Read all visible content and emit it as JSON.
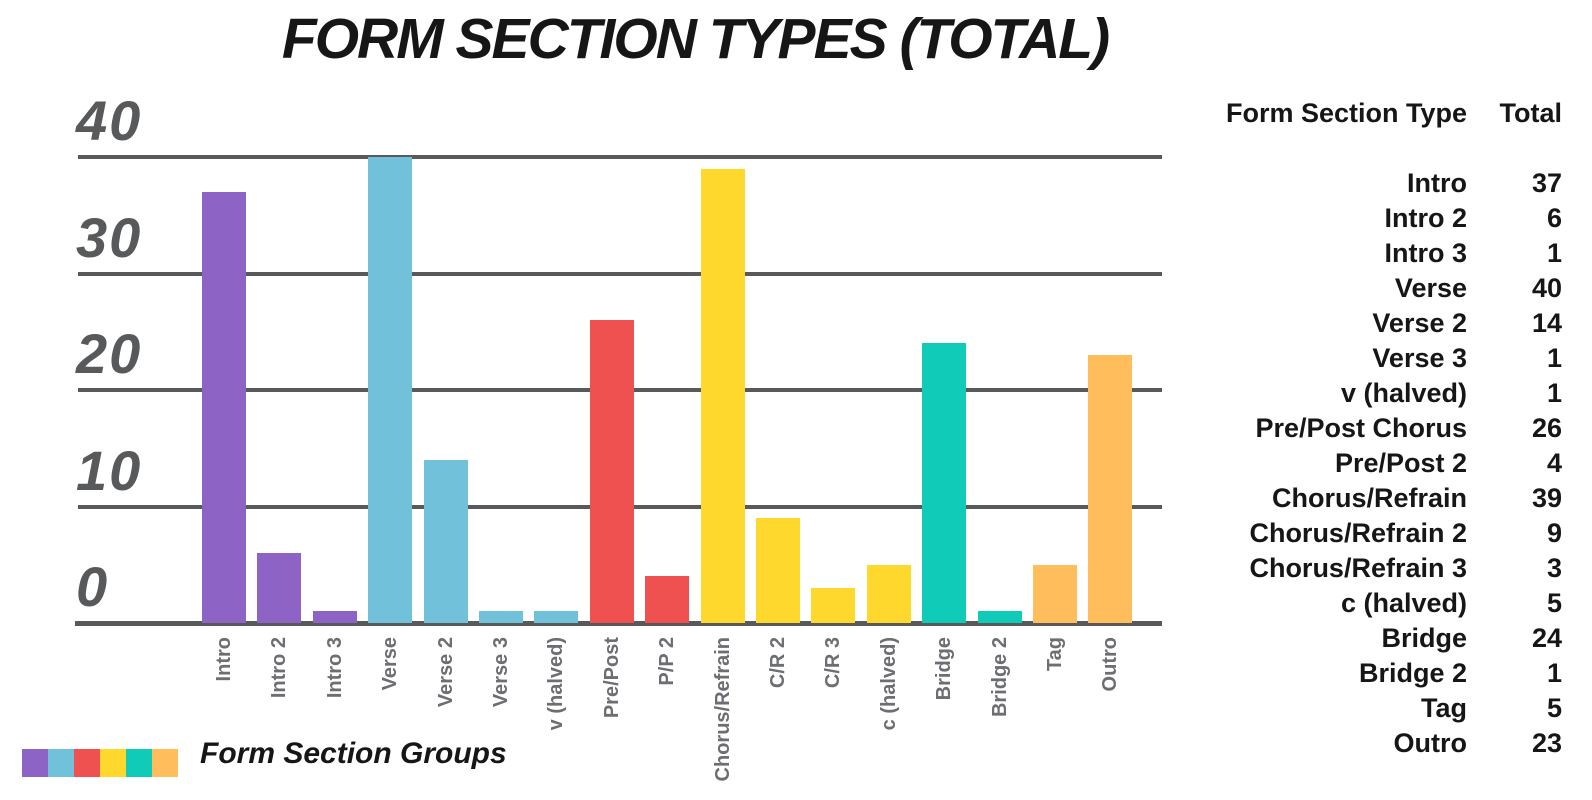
{
  "title": "FORM SECTION TYPES (TOTAL)",
  "legend": {
    "label": "Form Section Groups",
    "colors": [
      "#8d63c5",
      "#72c1da",
      "#ef5150",
      "#ffd82e",
      "#10cbb8",
      "#ffbe5b"
    ]
  },
  "table": {
    "header": {
      "type": "Form Section Type",
      "total": "Total"
    },
    "rows": [
      {
        "label": "Intro",
        "total": "37"
      },
      {
        "label": "Intro 2",
        "total": "6"
      },
      {
        "label": "Intro 3",
        "total": "1"
      },
      {
        "label": "Verse",
        "total": "40"
      },
      {
        "label": "Verse 2",
        "total": "14"
      },
      {
        "label": "Verse 3",
        "total": "1"
      },
      {
        "label": "v (halved)",
        "total": "1"
      },
      {
        "label": "Pre/Post Chorus",
        "total": "26"
      },
      {
        "label": "Pre/Post 2",
        "total": "4"
      },
      {
        "label": "Chorus/Refrain",
        "total": "39"
      },
      {
        "label": "Chorus/Refrain 2",
        "total": "9"
      },
      {
        "label": "Chorus/Refrain 3",
        "total": "3"
      },
      {
        "label": "c (halved)",
        "total": "5"
      },
      {
        "label": "Bridge",
        "total": "24"
      },
      {
        "label": "Bridge 2",
        "total": "1"
      },
      {
        "label": "Tag",
        "total": "5"
      },
      {
        "label": "Outro",
        "total": "23"
      }
    ]
  },
  "chart_data": {
    "type": "bar",
    "title": "FORM SECTION TYPES (TOTAL)",
    "categories": [
      "Intro",
      "Intro 2",
      "Intro 3",
      "Verse",
      "Verse 2",
      "Verse 3",
      "v (halved)",
      "Pre/Post",
      "P/P 2",
      "Chorus/Refrain",
      "C/R 2",
      "C/R 3",
      "c (halved)",
      "Bridge",
      "Bridge 2",
      "Tag",
      "Outro"
    ],
    "values": [
      37,
      6,
      1,
      40,
      14,
      1,
      1,
      26,
      4,
      39,
      9,
      3,
      5,
      24,
      1,
      5,
      23
    ],
    "group_of_bar": [
      0,
      0,
      0,
      1,
      1,
      1,
      1,
      2,
      2,
      3,
      3,
      3,
      3,
      4,
      4,
      5,
      5
    ],
    "group_colors": [
      "#8d63c5",
      "#72c1da",
      "#ef5150",
      "#ffd82e",
      "#10cbb8",
      "#ffbe5b"
    ],
    "xlabel": "",
    "ylabel": "",
    "yticks": [
      0,
      10,
      20,
      30,
      40
    ],
    "ylim": [
      0,
      40
    ],
    "grid": true,
    "legend_label": "Form Section Groups",
    "grid_color": "#58595b",
    "tick_label_color": "#58595b",
    "x_label_color": "#6d6e71"
  }
}
